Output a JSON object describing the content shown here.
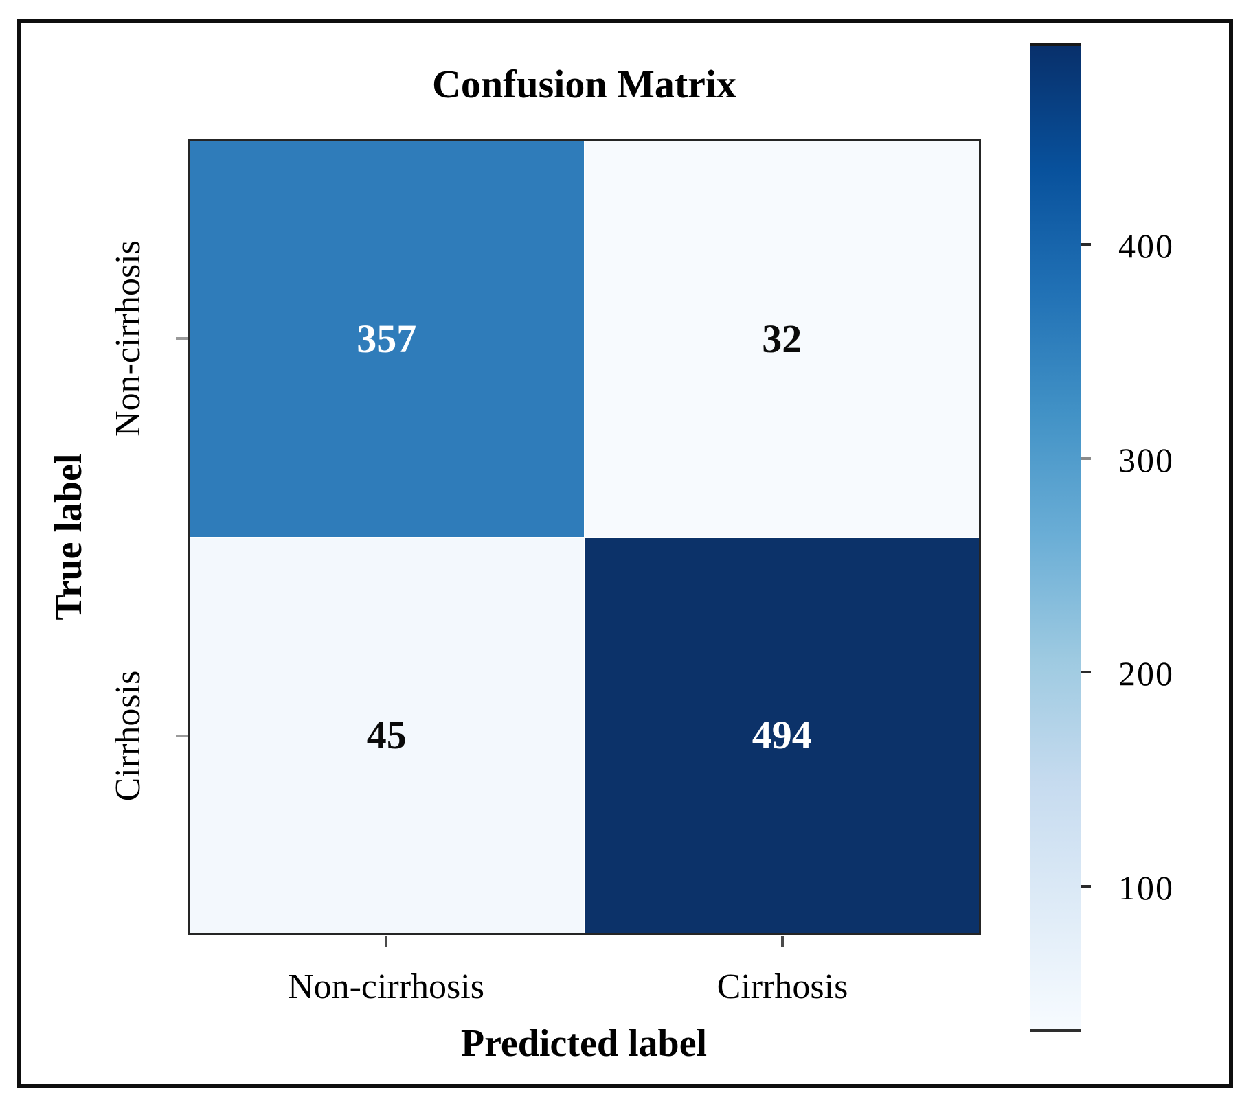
{
  "figure": {
    "title": "Confusion Matrix",
    "xlabel": "Predicted label",
    "ylabel": "True label"
  },
  "chart_data": {
    "type": "heatmap",
    "title": "Confusion Matrix",
    "xlabel": "Predicted label",
    "ylabel": "True label",
    "x_categories": [
      "Non-cirrhosis",
      "Cirrhosis"
    ],
    "y_categories": [
      "Non-cirrhosis",
      "Cirrhosis"
    ],
    "matrix": [
      [
        357,
        32
      ],
      [
        45,
        494
      ]
    ],
    "vmin": 32,
    "vmax": 494,
    "colormap": "Blues",
    "colorbar_ticks": [
      100,
      200,
      300,
      400
    ],
    "colorbar_position": "right",
    "grid": false
  },
  "cells": [
    {
      "value": "357"
    },
    {
      "value": "32"
    },
    {
      "value": "45"
    },
    {
      "value": "494"
    }
  ],
  "x_ticks": [
    {
      "label": "Non-cirrhosis"
    },
    {
      "label": "Cirrhosis"
    }
  ],
  "y_ticks": [
    {
      "label": "Non-cirrhosis"
    },
    {
      "label": "Cirrhosis"
    }
  ],
  "colorbar": {
    "ticks": [
      {
        "label": "400"
      },
      {
        "label": "300"
      },
      {
        "label": "200"
      },
      {
        "label": "100"
      }
    ]
  },
  "colors": {
    "cell_top_left": "#2f7cba",
    "cell_top_right": "#f7fafe",
    "cell_bottom_left": "#f3f8fd",
    "cell_bottom_right": "#0c3269",
    "cmap_low": "#f7fbff",
    "cmap_high": "#08306b",
    "text": "#000000"
  }
}
